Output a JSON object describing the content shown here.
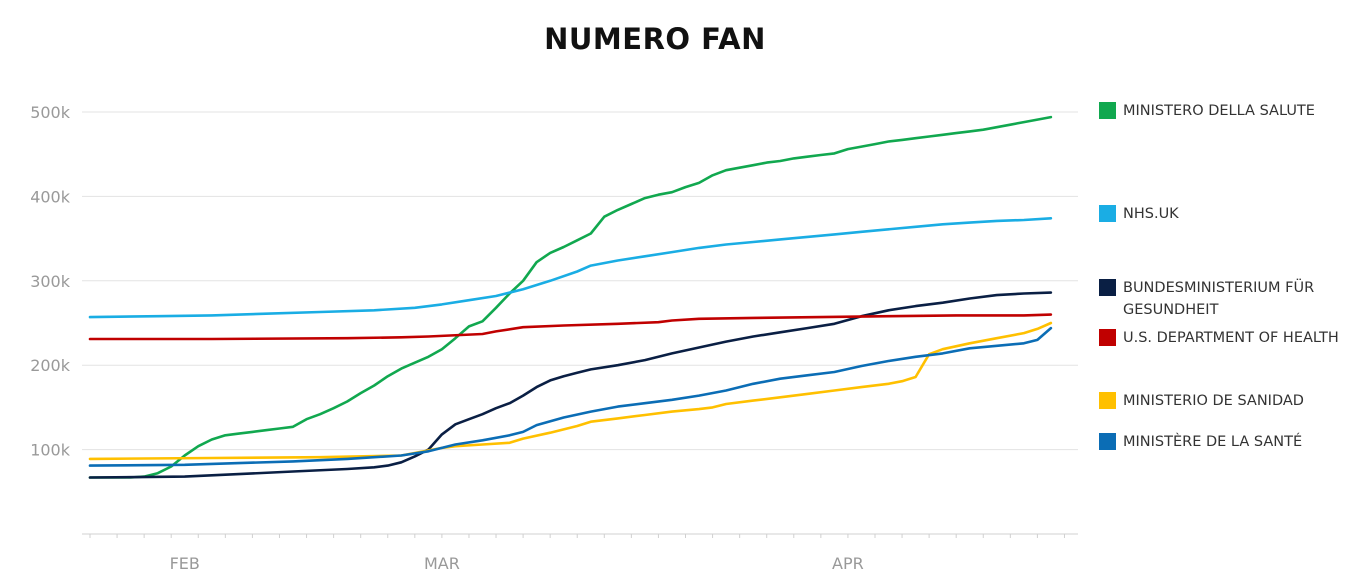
{
  "chart_data": {
    "type": "line",
    "title": "NUMERO FAN",
    "xlabel": "",
    "ylabel": "",
    "ylim": [
      0,
      500000
    ],
    "y_ticks": [
      {
        "value": 100000,
        "label": "100k"
      },
      {
        "value": 200000,
        "label": "200k"
      },
      {
        "value": 300000,
        "label": "300k"
      },
      {
        "value": 400000,
        "label": "400k"
      },
      {
        "value": 500000,
        "label": "500k"
      }
    ],
    "x_range": [
      1,
      74
    ],
    "x_ticks": [
      {
        "value": 8,
        "label": "FEB"
      },
      {
        "value": 27,
        "label": "MAR"
      },
      {
        "value": 57,
        "label": "APR"
      }
    ],
    "grid": true,
    "legend_position": "right",
    "series": [
      {
        "name": "MINISTERO DELLA SALUTE",
        "color": "#11A84F",
        "points": [
          [
            1,
            67000
          ],
          [
            4,
            67000
          ],
          [
            5,
            68000
          ],
          [
            6,
            72000
          ],
          [
            7,
            80000
          ],
          [
            8,
            93000
          ],
          [
            9,
            104000
          ],
          [
            10,
            112000
          ],
          [
            11,
            117000
          ],
          [
            12,
            119000
          ],
          [
            13,
            121000
          ],
          [
            14,
            123000
          ],
          [
            15,
            125000
          ],
          [
            16,
            127000
          ],
          [
            17,
            136000
          ],
          [
            18,
            142000
          ],
          [
            19,
            149000
          ],
          [
            20,
            157000
          ],
          [
            21,
            167000
          ],
          [
            22,
            176000
          ],
          [
            23,
            187000
          ],
          [
            24,
            196000
          ],
          [
            25,
            203000
          ],
          [
            26,
            210000
          ],
          [
            27,
            219000
          ],
          [
            28,
            232000
          ],
          [
            29,
            246000
          ],
          [
            30,
            252000
          ],
          [
            31,
            268000
          ],
          [
            32,
            285000
          ],
          [
            33,
            300000
          ],
          [
            34,
            322000
          ],
          [
            35,
            333000
          ],
          [
            36,
            340000
          ],
          [
            37,
            348000
          ],
          [
            38,
            356000
          ],
          [
            39,
            376000
          ],
          [
            40,
            384000
          ],
          [
            41,
            391000
          ],
          [
            42,
            398000
          ],
          [
            43,
            402000
          ],
          [
            44,
            405000
          ],
          [
            45,
            411000
          ],
          [
            46,
            416000
          ],
          [
            47,
            425000
          ],
          [
            48,
            431000
          ],
          [
            49,
            434000
          ],
          [
            50,
            437000
          ],
          [
            51,
            440000
          ],
          [
            52,
            442000
          ],
          [
            53,
            445000
          ],
          [
            54,
            447000
          ],
          [
            55,
            449000
          ],
          [
            56,
            451000
          ],
          [
            57,
            456000
          ],
          [
            58,
            459000
          ],
          [
            59,
            462000
          ],
          [
            60,
            465000
          ],
          [
            61,
            467000
          ],
          [
            62,
            469000
          ],
          [
            63,
            471000
          ],
          [
            64,
            473000
          ],
          [
            65,
            475000
          ],
          [
            66,
            477000
          ],
          [
            67,
            479000
          ],
          [
            68,
            482000
          ],
          [
            69,
            485000
          ],
          [
            70,
            488000
          ],
          [
            71,
            491000
          ],
          [
            72,
            494000
          ]
        ]
      },
      {
        "name": "NHS.UK",
        "color": "#1AADE4",
        "points": [
          [
            1,
            257000
          ],
          [
            6,
            258000
          ],
          [
            10,
            259000
          ],
          [
            14,
            261000
          ],
          [
            18,
            263000
          ],
          [
            22,
            265000
          ],
          [
            25,
            268000
          ],
          [
            27,
            272000
          ],
          [
            29,
            277000
          ],
          [
            31,
            282000
          ],
          [
            33,
            290000
          ],
          [
            35,
            300000
          ],
          [
            37,
            311000
          ],
          [
            38,
            318000
          ],
          [
            40,
            324000
          ],
          [
            42,
            329000
          ],
          [
            44,
            334000
          ],
          [
            46,
            339000
          ],
          [
            48,
            343000
          ],
          [
            50,
            346000
          ],
          [
            52,
            349000
          ],
          [
            54,
            352000
          ],
          [
            56,
            355000
          ],
          [
            58,
            358000
          ],
          [
            60,
            361000
          ],
          [
            62,
            364000
          ],
          [
            64,
            367000
          ],
          [
            66,
            369000
          ],
          [
            68,
            371000
          ],
          [
            70,
            372000
          ],
          [
            72,
            374000
          ]
        ]
      },
      {
        "name": "BUNDESMINISTERIUM FÜR GESUNDHEIT",
        "color": "#0A1F44",
        "points": [
          [
            1,
            67000
          ],
          [
            8,
            68000
          ],
          [
            12,
            71000
          ],
          [
            16,
            74000
          ],
          [
            20,
            77000
          ],
          [
            22,
            79000
          ],
          [
            23,
            81000
          ],
          [
            24,
            85000
          ],
          [
            25,
            92000
          ],
          [
            26,
            100000
          ],
          [
            27,
            118000
          ],
          [
            28,
            130000
          ],
          [
            29,
            136000
          ],
          [
            30,
            142000
          ],
          [
            31,
            149000
          ],
          [
            32,
            155000
          ],
          [
            33,
            164000
          ],
          [
            34,
            174000
          ],
          [
            35,
            182000
          ],
          [
            36,
            187000
          ],
          [
            37,
            191000
          ],
          [
            38,
            195000
          ],
          [
            40,
            200000
          ],
          [
            42,
            206000
          ],
          [
            44,
            214000
          ],
          [
            46,
            221000
          ],
          [
            48,
            228000
          ],
          [
            50,
            234000
          ],
          [
            52,
            239000
          ],
          [
            54,
            244000
          ],
          [
            56,
            249000
          ],
          [
            58,
            258000
          ],
          [
            60,
            265000
          ],
          [
            62,
            270000
          ],
          [
            64,
            274000
          ],
          [
            66,
            279000
          ],
          [
            68,
            283000
          ],
          [
            70,
            285000
          ],
          [
            72,
            286000
          ]
        ]
      },
      {
        "name": "U.S. DEPARTMENT OF HEALTH",
        "color": "#C00000",
        "points": [
          [
            1,
            231000
          ],
          [
            10,
            231000
          ],
          [
            20,
            232000
          ],
          [
            24,
            233000
          ],
          [
            26,
            234000
          ],
          [
            30,
            237000
          ],
          [
            31,
            240000
          ],
          [
            33,
            245000
          ],
          [
            36,
            247000
          ],
          [
            40,
            249000
          ],
          [
            43,
            251000
          ],
          [
            44,
            253000
          ],
          [
            46,
            255000
          ],
          [
            50,
            256000
          ],
          [
            55,
            257000
          ],
          [
            60,
            258000
          ],
          [
            65,
            259000
          ],
          [
            70,
            259000
          ],
          [
            72,
            260000
          ]
        ]
      },
      {
        "name": "MINISTERIO DE SANIDAD",
        "color": "#FFC000",
        "points": [
          [
            1,
            89000
          ],
          [
            10,
            90000
          ],
          [
            18,
            91000
          ],
          [
            24,
            93000
          ],
          [
            27,
            102000
          ],
          [
            28,
            104000
          ],
          [
            30,
            106000
          ],
          [
            32,
            108000
          ],
          [
            33,
            113000
          ],
          [
            35,
            120000
          ],
          [
            37,
            128000
          ],
          [
            38,
            133000
          ],
          [
            40,
            137000
          ],
          [
            42,
            141000
          ],
          [
            44,
            145000
          ],
          [
            46,
            148000
          ],
          [
            47,
            150000
          ],
          [
            48,
            154000
          ],
          [
            50,
            158000
          ],
          [
            52,
            162000
          ],
          [
            54,
            166000
          ],
          [
            56,
            170000
          ],
          [
            58,
            174000
          ],
          [
            60,
            178000
          ],
          [
            61,
            181000
          ],
          [
            62,
            186000
          ],
          [
            63,
            213000
          ],
          [
            64,
            219000
          ],
          [
            66,
            226000
          ],
          [
            68,
            232000
          ],
          [
            70,
            238000
          ],
          [
            71,
            243000
          ],
          [
            72,
            250000
          ]
        ]
      },
      {
        "name": "MINISTÈRE DE LA SANTÉ",
        "color": "#0B6DB5",
        "points": [
          [
            1,
            81000
          ],
          [
            8,
            82000
          ],
          [
            12,
            84000
          ],
          [
            16,
            86000
          ],
          [
            20,
            89000
          ],
          [
            24,
            93000
          ],
          [
            26,
            98000
          ],
          [
            27,
            102000
          ],
          [
            28,
            106000
          ],
          [
            30,
            111000
          ],
          [
            32,
            117000
          ],
          [
            33,
            121000
          ],
          [
            34,
            129000
          ],
          [
            36,
            138000
          ],
          [
            38,
            145000
          ],
          [
            40,
            151000
          ],
          [
            42,
            155000
          ],
          [
            44,
            159000
          ],
          [
            46,
            164000
          ],
          [
            48,
            170000
          ],
          [
            50,
            178000
          ],
          [
            52,
            184000
          ],
          [
            54,
            188000
          ],
          [
            56,
            192000
          ],
          [
            58,
            199000
          ],
          [
            60,
            205000
          ],
          [
            62,
            210000
          ],
          [
            64,
            214000
          ],
          [
            66,
            220000
          ],
          [
            68,
            223000
          ],
          [
            70,
            226000
          ],
          [
            71,
            230000
          ],
          [
            72,
            244000
          ]
        ]
      }
    ]
  }
}
